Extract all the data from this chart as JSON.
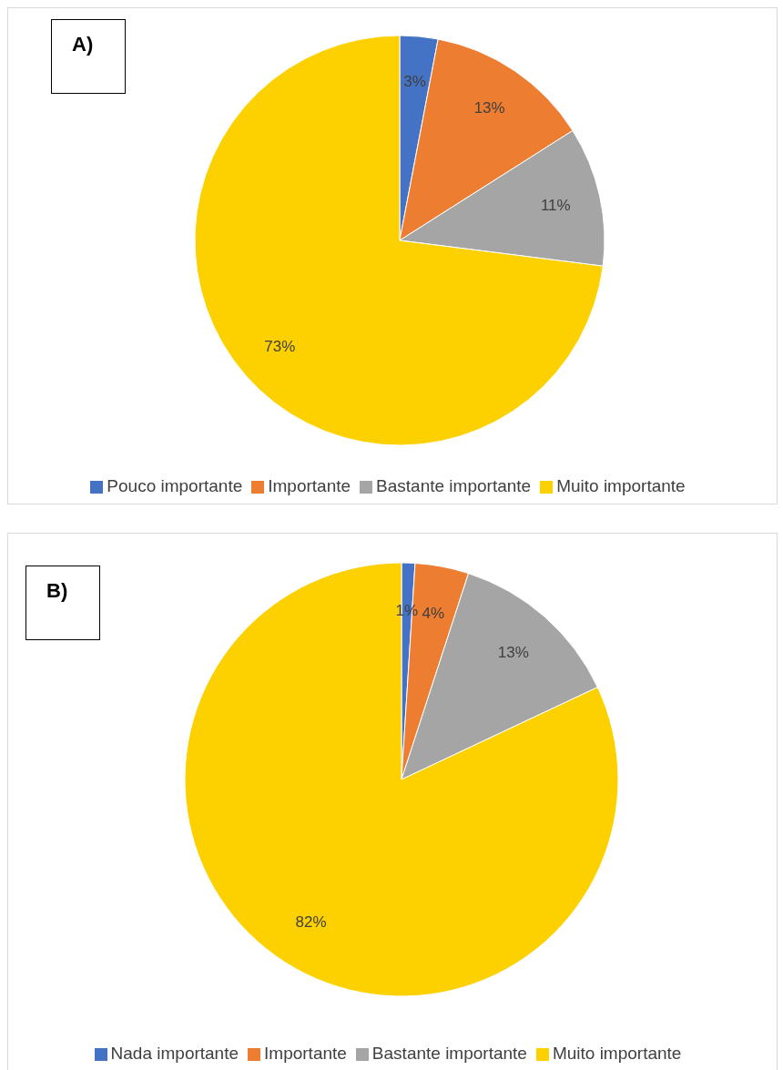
{
  "chart_data": [
    {
      "type": "pie",
      "title": "A)",
      "categories": [
        "Pouco importante",
        "Importante",
        "Bastante importante",
        "Muito importante"
      ],
      "values": [
        3,
        13,
        11,
        73
      ],
      "value_labels": [
        "3%",
        "13%",
        "11%",
        "73%"
      ],
      "colors": [
        "#4472c4",
        "#ed7d31",
        "#a5a5a5",
        "#fdd000"
      ],
      "legend": "bottom"
    },
    {
      "type": "pie",
      "title": "B)",
      "categories": [
        "Nada importante",
        "Importante",
        "Bastante importante",
        "Muito importante"
      ],
      "values": [
        1,
        4,
        13,
        82
      ],
      "value_labels": [
        "1%",
        "4%",
        "13%",
        "82%"
      ],
      "colors": [
        "#4472c4",
        "#ed7d31",
        "#a5a5a5",
        "#fdd000"
      ],
      "legend": "bottom"
    }
  ]
}
